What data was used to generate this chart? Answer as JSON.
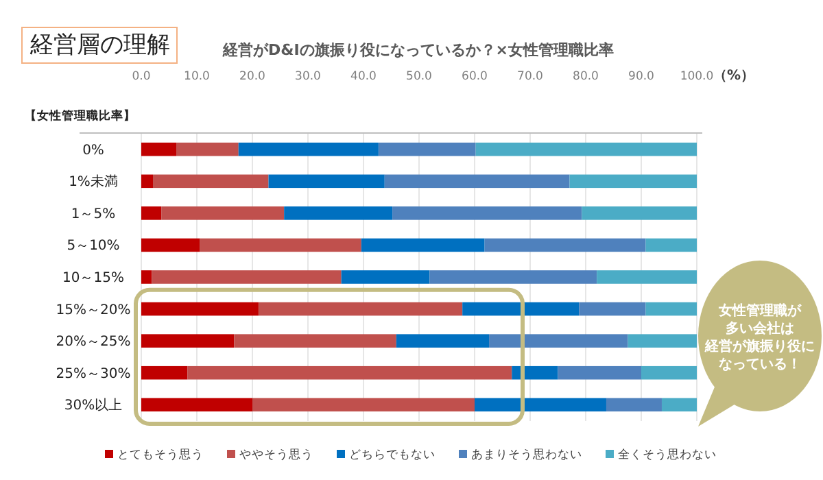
{
  "chart_data": {
    "type": "bar",
    "orientation": "horizontal",
    "stacked": true,
    "title": "経営層の理解",
    "subtitle": "経営がD&Iの旗振り役になっているか？×女性管理職比率",
    "xlabel": "（%）",
    "ylabel": "【女性管理職比率】",
    "categories": [
      "0%",
      "1%未満",
      "1～5%",
      "5～10%",
      "10～15%",
      "15%～20%",
      "20%～25%",
      "25%～30%",
      "30%以上"
    ],
    "series": [
      {
        "name": "とてもそう思う",
        "color": "#c00000",
        "values": [
          6.3,
          2.1,
          3.6,
          10.5,
          1.9,
          21.1,
          16.7,
          8.3,
          20.0
        ]
      },
      {
        "name": "ややそう思う",
        "color": "#c0504d",
        "values": [
          11.2,
          20.8,
          22.1,
          29.1,
          34.1,
          36.7,
          29.2,
          58.4,
          40.0
        ]
      },
      {
        "name": "どちらでもない",
        "color": "#0070c0",
        "values": [
          25.2,
          20.9,
          19.5,
          22.2,
          15.9,
          21.0,
          16.7,
          8.3,
          23.7
        ]
      },
      {
        "name": "あまりそう思わない",
        "color": "#4f81bd",
        "values": [
          17.5,
          33.3,
          34.1,
          29.0,
          30.1,
          12.0,
          25.0,
          15.0,
          10.0
        ]
      },
      {
        "name": "全くそう思わない",
        "color": "#4bacc6",
        "values": [
          39.8,
          22.9,
          20.7,
          9.2,
          18.0,
          9.2,
          12.4,
          10.0,
          6.3
        ]
      }
    ],
    "xlim": [
      0,
      100
    ],
    "xticks": [
      {
        "value": 0,
        "label": "0.0"
      },
      {
        "value": 10,
        "label": "10.0"
      },
      {
        "value": 20,
        "label": "20.0"
      },
      {
        "value": 30,
        "label": "30.0"
      },
      {
        "value": 40,
        "label": "40.0"
      },
      {
        "value": 50,
        "label": "50.0"
      },
      {
        "value": 60,
        "label": "60.0"
      },
      {
        "value": 70,
        "label": "70.0"
      },
      {
        "value": 80,
        "label": "80.0"
      },
      {
        "value": 90,
        "label": "90.0"
      },
      {
        "value": 100,
        "label": "100.0"
      }
    ],
    "grid": "x",
    "legend": "bottom",
    "annotations": [
      "女性管理職が多い会社は経営が旗振り役になっている！"
    ]
  }
}
